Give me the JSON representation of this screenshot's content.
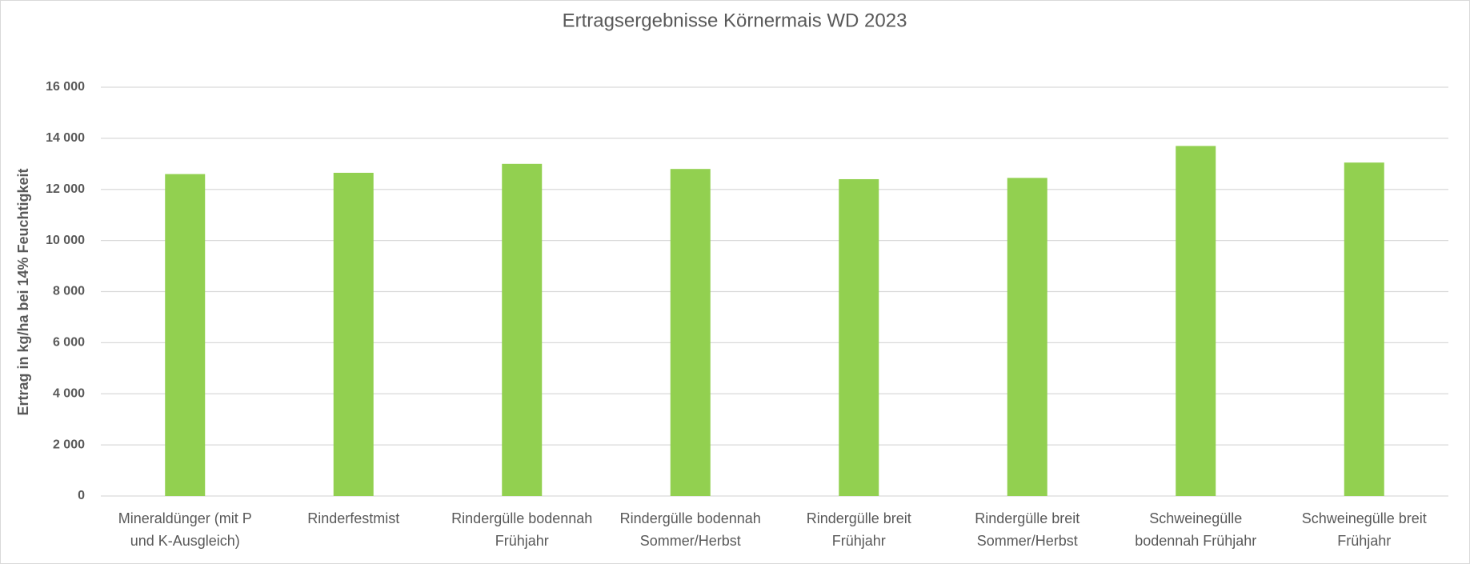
{
  "chart_data": {
    "type": "bar",
    "title": "Ertragsergebnisse Körnermais WD 2023",
    "y_label": "Ertrag in kg/ha bei 14% Feuchtigkeit",
    "categories": [
      "Mineraldünger (mit P\nund K-Ausgleich)",
      "Rinderfestmist",
      "Rindergülle bodennah\nFrühjahr",
      "Rindergülle bodennah\nSommer/Herbst",
      "Rindergülle breit\nFrühjahr",
      "Rindergülle breit\nSommer/Herbst",
      "Schweinegülle\nbodennah Frühjahr",
      "Schweinegülle breit\nFrühjahr"
    ],
    "values": [
      12600,
      12650,
      13000,
      12800,
      12400,
      12450,
      13700,
      13050
    ],
    "color": "#92d050",
    "ylim": [
      0,
      16000
    ],
    "yticks": [
      0,
      {
        "value": 2000,
        "label": "2 000"
      },
      {
        "value": 4000,
        "label": "4 000"
      },
      {
        "value": 6000,
        "label": "6 000"
      },
      {
        "value": 8000,
        "label": "8 000"
      },
      {
        "value": 10000,
        "label": "10 000"
      },
      {
        "value": 12000,
        "label": "12 000"
      },
      {
        "value": 14000,
        "label": "14 000"
      },
      {
        "value": 16000,
        "label": "16 000"
      }
    ],
    "grid": true
  }
}
